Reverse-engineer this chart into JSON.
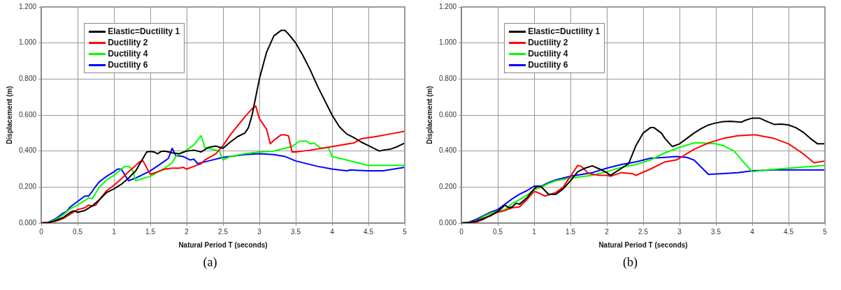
{
  "chart_data": [
    {
      "type": "line",
      "xlabel": "Natural Period T (seconds)",
      "ylabel": "Displacement (m)",
      "annotations": [
        "(a)"
      ],
      "legend": "top left",
      "grid": true,
      "marker": "none",
      "xlim": [
        0,
        5
      ],
      "xticks": [
        0,
        0.5,
        1,
        1.5,
        2,
        2.5,
        3,
        3.5,
        4,
        4.5,
        5
      ],
      "ylim": [
        0,
        1.2
      ],
      "yticks": [
        {
          "value": 0,
          "label": "0.000"
        },
        {
          "value": 0.2,
          "label": "0.200"
        },
        {
          "value": 0.4,
          "label": "0.400"
        },
        {
          "value": 0.6,
          "label": "0.600"
        },
        {
          "value": 0.8,
          "label": "0.800"
        },
        {
          "value": 1,
          "label": "1.000"
        },
        {
          "value": 1.2,
          "label": "1.200"
        }
      ],
      "series": [
        {
          "name": "Elastic=Ductility 1",
          "color": "#000000",
          "x": [
            0,
            0.1,
            0.2,
            0.3,
            0.4,
            0.45,
            0.5,
            0.6,
            0.7,
            0.8,
            0.9,
            1.0,
            1.1,
            1.2,
            1.3,
            1.4,
            1.45,
            1.5,
            1.55,
            1.6,
            1.65,
            1.7,
            1.8,
            1.9,
            2.0,
            2.1,
            2.2,
            2.3,
            2.4,
            2.5,
            2.6,
            2.7,
            2.8,
            2.85,
            2.9,
            3.0,
            3.1,
            3.2,
            3.3,
            3.35,
            3.4,
            3.5,
            3.6,
            3.7,
            3.8,
            3.9,
            4.0,
            4.1,
            4.2,
            4.3,
            4.4,
            4.5,
            4.6,
            4.65,
            4.7,
            4.8,
            4.9,
            5.0
          ],
          "values": [
            0,
            0.002,
            0.015,
            0.03,
            0.06,
            0.068,
            0.06,
            0.07,
            0.095,
            0.13,
            0.17,
            0.19,
            0.215,
            0.25,
            0.29,
            0.36,
            0.395,
            0.398,
            0.395,
            0.385,
            0.398,
            0.4,
            0.39,
            0.385,
            0.4,
            0.405,
            0.395,
            0.42,
            0.428,
            0.415,
            0.45,
            0.48,
            0.5,
            0.53,
            0.6,
            0.8,
            0.95,
            1.04,
            1.07,
            1.07,
            1.05,
            1.0,
            0.93,
            0.85,
            0.76,
            0.68,
            0.6,
            0.535,
            0.495,
            0.475,
            0.45,
            0.43,
            0.41,
            0.4,
            0.405,
            0.41,
            0.425,
            0.445
          ]
        },
        {
          "name": "Ductility 2",
          "color": "#ff0000",
          "x": [
            0,
            0.2,
            0.3,
            0.4,
            0.5,
            0.6,
            0.65,
            0.7,
            0.75,
            0.8,
            0.9,
            1.0,
            1.1,
            1.2,
            1.3,
            1.35,
            1.4,
            1.5,
            1.6,
            1.7,
            1.8,
            1.9,
            1.95,
            2.0,
            2.1,
            2.2,
            2.25,
            2.4,
            2.5,
            2.6,
            2.7,
            2.8,
            2.9,
            2.95,
            3.0,
            3.1,
            3.15,
            3.2,
            3.3,
            3.35,
            3.4,
            3.45,
            3.5,
            3.7,
            4.0,
            4.3,
            4.4,
            4.6,
            4.8,
            5.0
          ],
          "values": [
            0,
            0.01,
            0.025,
            0.05,
            0.075,
            0.085,
            0.1,
            0.095,
            0.1,
            0.13,
            0.18,
            0.21,
            0.245,
            0.285,
            0.32,
            0.34,
            0.345,
            0.27,
            0.285,
            0.3,
            0.305,
            0.305,
            0.31,
            0.3,
            0.315,
            0.33,
            0.35,
            0.385,
            0.43,
            0.49,
            0.54,
            0.59,
            0.635,
            0.65,
            0.58,
            0.52,
            0.44,
            0.46,
            0.49,
            0.49,
            0.485,
            0.395,
            0.395,
            0.405,
            0.425,
            0.445,
            0.468,
            0.48,
            0.495,
            0.51
          ]
        },
        {
          "name": "Ductility 4",
          "color": "#00ff00",
          "x": [
            0,
            0.1,
            0.2,
            0.3,
            0.4,
            0.5,
            0.6,
            0.65,
            0.7,
            0.8,
            0.9,
            1.0,
            1.1,
            1.15,
            1.2,
            1.25,
            1.3,
            1.5,
            1.7,
            1.8,
            1.85,
            1.9,
            2.0,
            2.1,
            2.2,
            2.25,
            2.3,
            2.45,
            2.5,
            2.6,
            2.8,
            3.0,
            3.2,
            3.3,
            3.45,
            3.55,
            3.65,
            3.7,
            3.75,
            3.85,
            3.95,
            4.0,
            4.2,
            4.5,
            4.8,
            5.0
          ],
          "values": [
            0,
            0.005,
            0.02,
            0.045,
            0.08,
            0.1,
            0.125,
            0.14,
            0.135,
            0.2,
            0.24,
            0.265,
            0.3,
            0.315,
            0.315,
            0.3,
            0.235,
            0.26,
            0.305,
            0.335,
            0.37,
            0.385,
            0.405,
            0.435,
            0.485,
            0.42,
            0.415,
            0.4,
            0.35,
            0.37,
            0.385,
            0.395,
            0.4,
            0.41,
            0.425,
            0.455,
            0.455,
            0.44,
            0.445,
            0.415,
            0.42,
            0.37,
            0.35,
            0.32,
            0.32,
            0.32
          ]
        },
        {
          "name": "Ductility 6",
          "color": "#0000ff",
          "x": [
            0,
            0.1,
            0.2,
            0.3,
            0.35,
            0.4,
            0.5,
            0.6,
            0.65,
            0.7,
            0.75,
            0.8,
            0.9,
            1.0,
            1.05,
            1.1,
            1.2,
            1.3,
            1.5,
            1.7,
            1.75,
            1.8,
            1.85,
            1.95,
            2.05,
            2.1,
            2.15,
            2.2,
            2.3,
            2.5,
            2.8,
            3.0,
            3.2,
            3.35,
            3.5,
            3.8,
            4.0,
            4.2,
            4.25,
            4.5,
            4.7,
            5.0
          ],
          "values": [
            0,
            0.005,
            0.025,
            0.055,
            0.065,
            0.09,
            0.12,
            0.15,
            0.15,
            0.175,
            0.205,
            0.23,
            0.26,
            0.285,
            0.3,
            0.3,
            0.235,
            0.25,
            0.29,
            0.345,
            0.36,
            0.415,
            0.375,
            0.37,
            0.35,
            0.355,
            0.33,
            0.335,
            0.345,
            0.365,
            0.38,
            0.385,
            0.38,
            0.37,
            0.345,
            0.315,
            0.3,
            0.29,
            0.295,
            0.29,
            0.29,
            0.31
          ]
        }
      ]
    },
    {
      "type": "line",
      "xlabel": "Natural Period T (seconds)",
      "ylabel": "Displacement (m)",
      "annotations": [
        "(b)"
      ],
      "legend": "top left",
      "grid": true,
      "marker": "none",
      "xlim": [
        0,
        5
      ],
      "xticks": [
        0,
        0.5,
        1,
        1.5,
        2,
        2.5,
        3,
        3.5,
        4,
        4.5,
        5
      ],
      "ylim": [
        0,
        1.2
      ],
      "yticks": [
        {
          "value": 0,
          "label": "0.000"
        },
        {
          "value": 0.2,
          "label": "0.200"
        },
        {
          "value": 0.4,
          "label": "0.400"
        },
        {
          "value": 0.6,
          "label": "0.600"
        },
        {
          "value": 0.8,
          "label": "0.800"
        },
        {
          "value": 1,
          "label": "1.000"
        },
        {
          "value": 1.2,
          "label": "1.200"
        }
      ],
      "series": [
        {
          "name": "Elastic=Ductility 1",
          "color": "#000000",
          "x": [
            0,
            0.1,
            0.2,
            0.3,
            0.4,
            0.5,
            0.6,
            0.65,
            0.7,
            0.75,
            0.8,
            0.9,
            1.0,
            1.05,
            1.1,
            1.2,
            1.3,
            1.4,
            1.5,
            1.6,
            1.7,
            1.8,
            1.9,
            2.0,
            2.05,
            2.3,
            2.4,
            2.5,
            2.6,
            2.65,
            2.75,
            2.8,
            2.9,
            3.0,
            3.1,
            3.2,
            3.3,
            3.4,
            3.5,
            3.6,
            3.7,
            3.85,
            3.9,
            4.0,
            4.1,
            4.2,
            4.3,
            4.4,
            4.5,
            4.6,
            4.7,
            4.8,
            4.9,
            5.0
          ],
          "values": [
            0,
            0.003,
            0.01,
            0.025,
            0.04,
            0.065,
            0.1,
            0.085,
            0.09,
            0.11,
            0.105,
            0.14,
            0.19,
            0.205,
            0.2,
            0.16,
            0.16,
            0.19,
            0.235,
            0.285,
            0.305,
            0.318,
            0.3,
            0.28,
            0.265,
            0.33,
            0.43,
            0.5,
            0.53,
            0.53,
            0.5,
            0.47,
            0.425,
            0.44,
            0.47,
            0.5,
            0.525,
            0.545,
            0.556,
            0.563,
            0.565,
            0.56,
            0.57,
            0.583,
            0.583,
            0.565,
            0.548,
            0.55,
            0.545,
            0.53,
            0.505,
            0.47,
            0.44,
            0.44
          ]
        },
        {
          "name": "Ductility 2",
          "color": "#ff0000",
          "x": [
            0,
            0.2,
            0.3,
            0.4,
            0.5,
            0.6,
            0.7,
            0.8,
            0.9,
            1.0,
            1.05,
            1.15,
            1.3,
            1.4,
            1.5,
            1.6,
            1.65,
            1.75,
            1.9,
            2.0,
            2.05,
            2.2,
            2.35,
            2.4,
            2.6,
            2.8,
            2.95,
            3.0,
            3.2,
            3.4,
            3.6,
            3.8,
            4.0,
            4.05,
            4.3,
            4.5,
            4.7,
            4.85,
            5.0
          ],
          "values": [
            0,
            0.005,
            0.02,
            0.045,
            0.06,
            0.07,
            0.085,
            0.09,
            0.13,
            0.175,
            0.17,
            0.15,
            0.17,
            0.2,
            0.26,
            0.32,
            0.315,
            0.275,
            0.265,
            0.265,
            0.26,
            0.28,
            0.275,
            0.265,
            0.3,
            0.34,
            0.35,
            0.36,
            0.41,
            0.445,
            0.47,
            0.485,
            0.49,
            0.49,
            0.47,
            0.44,
            0.385,
            0.335,
            0.345
          ]
        },
        {
          "name": "Ductility 4",
          "color": "#00ff00",
          "x": [
            0,
            0.2,
            0.3,
            0.4,
            0.5,
            0.6,
            0.7,
            0.8,
            0.9,
            1.0,
            1.1,
            1.2,
            1.3,
            1.5,
            1.8,
            2.0,
            2.2,
            2.4,
            2.6,
            2.8,
            3.0,
            3.2,
            3.3,
            3.5,
            3.6,
            3.75,
            3.9,
            4.0,
            4.2,
            4.5,
            5.0
          ],
          "values": [
            0,
            0.01,
            0.035,
            0.055,
            0.065,
            0.075,
            0.11,
            0.13,
            0.155,
            0.185,
            0.2,
            0.22,
            0.235,
            0.25,
            0.265,
            0.285,
            0.31,
            0.325,
            0.35,
            0.39,
            0.42,
            0.445,
            0.445,
            0.44,
            0.43,
            0.4,
            0.33,
            0.285,
            0.295,
            0.305,
            0.32
          ]
        },
        {
          "name": "Ductility 6",
          "color": "#0000ff",
          "x": [
            0,
            0.1,
            0.2,
            0.3,
            0.4,
            0.5,
            0.6,
            0.7,
            0.8,
            0.9,
            1.0,
            1.1,
            1.2,
            1.3,
            1.5,
            1.8,
            2.0,
            2.2,
            2.4,
            2.6,
            2.8,
            2.95,
            3.1,
            3.2,
            3.3,
            3.4,
            3.6,
            3.8,
            4.0,
            4.3,
            4.6,
            5.0
          ],
          "values": [
            0,
            0.005,
            0.02,
            0.04,
            0.06,
            0.075,
            0.105,
            0.135,
            0.16,
            0.18,
            0.205,
            0.205,
            0.225,
            0.24,
            0.26,
            0.28,
            0.305,
            0.325,
            0.34,
            0.36,
            0.365,
            0.37,
            0.365,
            0.35,
            0.31,
            0.27,
            0.275,
            0.28,
            0.29,
            0.295,
            0.295,
            0.295
          ]
        }
      ]
    }
  ]
}
